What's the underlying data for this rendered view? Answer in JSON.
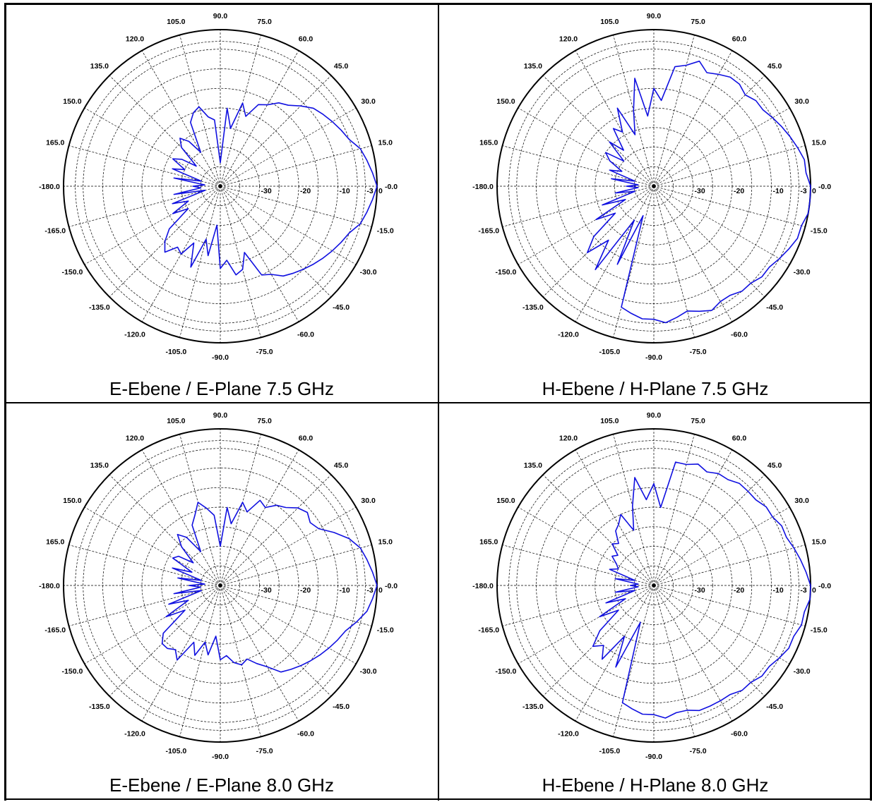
{
  "chart_data": [
    {
      "type": "polar-line",
      "title": "E-Ebene / E-Plane 7.5 GHz",
      "radial_axis": {
        "ticks": [
          -30,
          -20,
          -10,
          -3,
          0
        ],
        "tick_labels": [
          "-30",
          "-20",
          "-10",
          "-3",
          "0"
        ],
        "min_db": -40,
        "max_db": 0
      },
      "angular_axis": {
        "ticks_deg": [
          0,
          15,
          30,
          45,
          60,
          75,
          90,
          105,
          120,
          135,
          150,
          165,
          180,
          -165,
          -150,
          -135,
          -120,
          -105,
          -90,
          -75,
          -60,
          -45,
          -30,
          -15
        ],
        "tick_labels": [
          "-0.0",
          "15.0",
          "30.0",
          "45.0",
          "60.0",
          "75.0",
          "90.0",
          "105.0",
          "120.0",
          "135.0",
          "150.0",
          "165.0",
          "-180.0",
          "-165.0",
          "-150.0",
          "-135.0",
          "-120.0",
          "-105.0",
          "-90.0",
          "-75.0",
          "-60.0",
          "-45.0",
          "-30.0",
          "-15.0"
        ]
      },
      "grid": true,
      "series": [
        {
          "color": "#1010e0",
          "angles_deg": [
            0,
            5,
            10,
            15,
            20,
            25,
            30,
            35,
            40,
            45,
            50,
            55,
            60,
            65,
            70,
            75,
            80,
            85,
            90,
            95,
            100,
            105,
            110,
            115,
            120,
            125,
            130,
            135,
            140,
            145,
            150,
            155,
            160,
            165,
            170,
            175,
            180,
            185,
            190,
            195,
            200,
            205,
            210,
            215,
            220,
            225,
            230,
            235,
            240,
            245,
            250,
            255,
            260,
            265,
            270,
            275,
            280,
            285,
            290,
            295,
            300,
            305,
            310,
            315,
            320,
            325,
            330,
            335,
            340,
            345,
            350,
            355
          ],
          "gain_db": [
            0,
            -1,
            -2,
            -3,
            -5,
            -6,
            -7,
            -8,
            -9,
            -11,
            -13,
            -14,
            -16,
            -17,
            -21,
            -18,
            -25,
            -20,
            -34,
            -23,
            -22,
            -19,
            -20,
            -22,
            -30,
            -26,
            -24,
            -26,
            -32,
            -28,
            -26,
            -30,
            -27,
            -35,
            -28,
            -36,
            -33,
            -35,
            -28,
            -36,
            -27,
            -31,
            -26,
            -30,
            -23,
            -20,
            -18,
            -21,
            -20,
            -24,
            -18,
            -26,
            -22,
            -30,
            -19,
            -21,
            -17,
            -18,
            -22,
            -15,
            -14,
            -12,
            -11,
            -10,
            -9,
            -8,
            -7,
            -6,
            -5,
            -3,
            -2,
            -1
          ]
        }
      ]
    },
    {
      "type": "polar-line",
      "title": "H-Ebene / H-Plane 7.5 GHz",
      "radial_axis": {
        "ticks": [
          -30,
          -20,
          -10,
          -3,
          0
        ],
        "tick_labels": [
          "-30",
          "-20",
          "-10",
          "-3",
          "0"
        ],
        "min_db": -40,
        "max_db": 0
      },
      "angular_axis": {
        "ticks_deg": [
          0,
          15,
          30,
          45,
          60,
          75,
          90,
          105,
          120,
          135,
          150,
          165,
          180,
          -165,
          -150,
          -135,
          -120,
          -105,
          -90,
          -75,
          -60,
          -45,
          -30,
          -15
        ],
        "tick_labels": [
          "-0.0",
          "15.0",
          "30.0",
          "45.0",
          "60.0",
          "75.0",
          "90.0",
          "105.0",
          "120.0",
          "135.0",
          "150.0",
          "165.0",
          "-180.0",
          "-165.0",
          "-150.0",
          "-135.0",
          "-120.0",
          "-105.0",
          "-90.0",
          "-75.0",
          "-60.0",
          "-45.0",
          "-30.0",
          "-15.0"
        ]
      },
      "grid": true,
      "series": [
        {
          "color": "#1010e0",
          "angles_deg": [
            0,
            5,
            10,
            15,
            20,
            25,
            30,
            35,
            40,
            45,
            50,
            55,
            60,
            65,
            70,
            75,
            80,
            85,
            90,
            95,
            100,
            105,
            110,
            115,
            120,
            125,
            130,
            135,
            140,
            145,
            150,
            155,
            160,
            165,
            170,
            175,
            180,
            185,
            190,
            195,
            200,
            205,
            210,
            215,
            220,
            225,
            230,
            235,
            240,
            245,
            250,
            255,
            260,
            265,
            270,
            275,
            280,
            285,
            290,
            295,
            300,
            305,
            310,
            315,
            320,
            325,
            330,
            335,
            340,
            345,
            350,
            355
          ],
          "gain_db": [
            0,
            -1,
            -1,
            -2,
            -3,
            -4,
            -5,
            -6,
            -6,
            -7,
            -6,
            -6,
            -7,
            -8,
            -6,
            -8,
            -9,
            -18,
            -15,
            -22,
            -12,
            -20,
            -26,
            -18,
            -24,
            -22,
            -28,
            -24,
            -30,
            -25,
            -27,
            -31,
            -28,
            -35,
            -29,
            -36,
            -33,
            -36,
            -30,
            -35,
            -26,
            -32,
            -23,
            -28,
            -20,
            -16,
            -22,
            -14,
            -30,
            -18,
            -32,
            -8,
            -7,
            -6,
            -6,
            -5,
            -6,
            -7,
            -6,
            -5,
            -6,
            -6,
            -5,
            -5,
            -4,
            -4,
            -3,
            -2,
            -1,
            -1,
            0,
            0
          ]
        }
      ]
    },
    {
      "type": "polar-line",
      "title": "E-Ebene / E-Plane 8.0 GHz",
      "radial_axis": {
        "ticks": [
          -30,
          -20,
          -10,
          -3,
          0
        ],
        "tick_labels": [
          "-30",
          "-20",
          "-10",
          "-3",
          "0"
        ],
        "min_db": -40,
        "max_db": 0
      },
      "angular_axis": {
        "ticks_deg": [
          0,
          15,
          30,
          45,
          60,
          75,
          90,
          105,
          120,
          135,
          150,
          165,
          180,
          -165,
          -150,
          -135,
          -120,
          -105,
          -90,
          -75,
          -60,
          -45,
          -30,
          -15
        ],
        "tick_labels": [
          "-0.0",
          "15.0",
          "30.0",
          "45.0",
          "60.0",
          "75.0",
          "90.0",
          "105.0",
          "120.0",
          "135.0",
          "150.0",
          "165.0",
          "-180.0",
          "-165.0",
          "-150.0",
          "-135.0",
          "-120.0",
          "-105.0",
          "-90.0",
          "-75.0",
          "-60.0",
          "-45.0",
          "-30.0",
          "-15.0"
        ]
      },
      "grid": true,
      "series": [
        {
          "color": "#1010e0",
          "angles_deg": [
            0,
            5,
            10,
            15,
            20,
            25,
            30,
            35,
            40,
            45,
            50,
            55,
            60,
            65,
            70,
            75,
            80,
            85,
            90,
            95,
            100,
            105,
            110,
            115,
            120,
            125,
            130,
            135,
            140,
            145,
            150,
            155,
            160,
            165,
            170,
            175,
            180,
            185,
            190,
            195,
            200,
            205,
            210,
            215,
            220,
            225,
            230,
            235,
            240,
            245,
            250,
            255,
            260,
            265,
            270,
            275,
            280,
            285,
            290,
            295,
            300,
            305,
            310,
            315,
            320,
            325,
            330,
            335,
            340,
            345,
            350,
            355
          ],
          "gain_db": [
            0,
            -1,
            -2,
            -3,
            -5,
            -8,
            -11,
            -12,
            -11,
            -12,
            -14,
            -15,
            -17,
            -16,
            -20,
            -18,
            -24,
            -20,
            -30,
            -22,
            -20,
            -18,
            -21,
            -23,
            -30,
            -25,
            -23,
            -26,
            -31,
            -27,
            -26,
            -32,
            -27,
            -35,
            -29,
            -36,
            -32,
            -35,
            -28,
            -35,
            -26,
            -31,
            -24,
            -29,
            -21,
            -19,
            -19,
            -20,
            -18,
            -24,
            -21,
            -25,
            -22,
            -27,
            -21,
            -22,
            -20,
            -19,
            -20,
            -18,
            -16,
            -13,
            -12,
            -11,
            -10,
            -9,
            -8,
            -7,
            -6,
            -4,
            -2,
            -1
          ]
        }
      ]
    },
    {
      "type": "polar-line",
      "title": "H-Ebene / H-Plane 8.0 GHz",
      "radial_axis": {
        "ticks": [
          -30,
          -20,
          -10,
          -3,
          0
        ],
        "tick_labels": [
          "-30",
          "-20",
          "-10",
          "-3",
          "0"
        ],
        "min_db": -40,
        "max_db": 0
      },
      "angular_axis": {
        "ticks_deg": [
          0,
          15,
          30,
          45,
          60,
          75,
          90,
          105,
          120,
          135,
          150,
          165,
          180,
          -165,
          -150,
          -135,
          -120,
          -105,
          -90,
          -75,
          -60,
          -45,
          -30,
          -15
        ],
        "tick_labels": [
          "-0.0",
          "15.0",
          "30.0",
          "45.0",
          "60.0",
          "75.0",
          "90.0",
          "105.0",
          "120.0",
          "135.0",
          "150.0",
          "165.0",
          "-180.0",
          "-165.0",
          "-150.0",
          "-135.0",
          "-120.0",
          "-105.0",
          "-90.0",
          "-75.0",
          "-60.0",
          "-45.0",
          "-30.0",
          "-15.0"
        ]
      },
      "grid": true,
      "series": [
        {
          "color": "#1010e0",
          "angles_deg": [
            0,
            5,
            10,
            15,
            20,
            25,
            30,
            35,
            40,
            45,
            50,
            55,
            60,
            65,
            70,
            75,
            80,
            85,
            90,
            95,
            100,
            105,
            110,
            115,
            120,
            125,
            130,
            135,
            140,
            145,
            150,
            155,
            160,
            165,
            170,
            175,
            180,
            185,
            190,
            195,
            200,
            205,
            210,
            215,
            220,
            225,
            230,
            235,
            240,
            245,
            250,
            255,
            260,
            265,
            270,
            275,
            280,
            285,
            290,
            295,
            300,
            305,
            310,
            315,
            320,
            325,
            330,
            335,
            340,
            345,
            350,
            355
          ],
          "gain_db": [
            0,
            -1,
            -2,
            -3,
            -4,
            -4,
            -5,
            -5,
            -6,
            -6,
            -6,
            -7,
            -7,
            -8,
            -7,
            -8,
            -8,
            -20,
            -14,
            -18,
            -12,
            -19,
            -25,
            -20,
            -22,
            -23,
            -26,
            -25,
            -28,
            -27,
            -29,
            -30,
            -28,
            -35,
            -30,
            -36,
            -34,
            -36,
            -30,
            -35,
            -27,
            -32,
            -24,
            -29,
            -22,
            -18,
            -20,
            -17,
            -25,
            -17,
            -30,
            -9,
            -8,
            -7,
            -7,
            -6,
            -7,
            -7,
            -6,
            -6,
            -6,
            -6,
            -5,
            -5,
            -4,
            -4,
            -3,
            -2,
            -2,
            -1,
            -1,
            0
          ]
        }
      ]
    }
  ]
}
